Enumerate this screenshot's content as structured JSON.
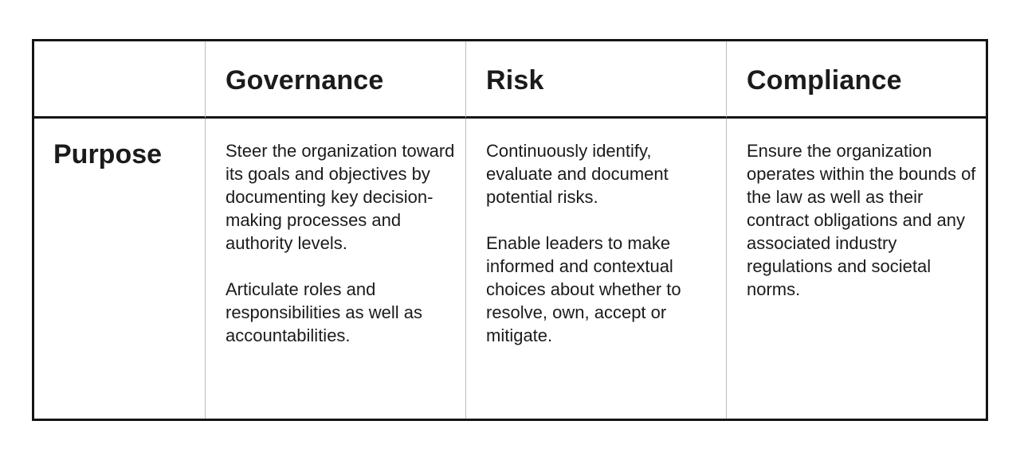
{
  "table": {
    "corner_label": "",
    "columns": [
      {
        "heading": "Governance"
      },
      {
        "heading": "Risk"
      },
      {
        "heading": "Compliance"
      }
    ],
    "rows": [
      {
        "heading": "Purpose",
        "cells": [
          {
            "paragraphs": [
              "Steer the organization toward its goals and objectives by documenting key decision-making processes and authority levels.",
              "Articulate roles and responsibilities as well as accountabilities."
            ]
          },
          {
            "paragraphs": [
              "Continuously identify, evaluate and document potential risks.",
              "Enable leaders to make informed and contextual choices about whether to resolve, own, accept or mitigate."
            ]
          },
          {
            "paragraphs": [
              "Ensure the organization operates within the bounds of the law as well as their contract obligations and any associated industry regulations and societal norms."
            ]
          }
        ]
      }
    ]
  }
}
